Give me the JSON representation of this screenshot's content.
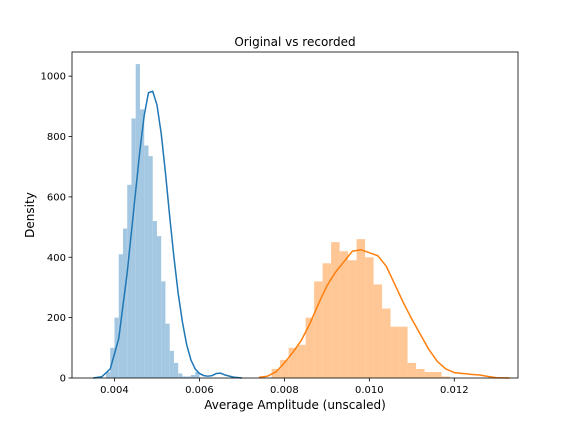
{
  "chart_data": {
    "type": "bar",
    "title": "Original vs recorded",
    "xlabel": "Average Amplitude (unscaled)",
    "ylabel": "Density",
    "xlim": [
      0.003,
      0.0135
    ],
    "ylim": [
      0,
      1080
    ],
    "x_ticks": [
      {
        "value": 0.004,
        "label": "0.004"
      },
      {
        "value": 0.006,
        "label": "0.006"
      },
      {
        "value": 0.008,
        "label": "0.008"
      },
      {
        "value": 0.01,
        "label": "0.010"
      },
      {
        "value": 0.012,
        "label": "0.012"
      }
    ],
    "y_ticks": [
      {
        "value": 0,
        "label": "0"
      },
      {
        "value": 200,
        "label": "200"
      },
      {
        "value": 400,
        "label": "400"
      },
      {
        "value": 600,
        "label": "600"
      },
      {
        "value": 800,
        "label": "800"
      },
      {
        "value": 1000,
        "label": "1000"
      }
    ],
    "grid": false,
    "series": [
      {
        "color": "#1f77b4",
        "bar_color": "#a4c8e2",
        "bin_width": 0.0001,
        "bin_edges_start": 0.0038,
        "hist": [
          20,
          100,
          200,
          410,
          495,
          640,
          860,
          1040,
          890,
          770,
          735,
          520,
          470,
          320,
          180,
          90,
          50,
          15,
          5,
          5,
          10,
          20
        ],
        "kde": [
          [
            0.0035,
            0
          ],
          [
            0.0037,
            4
          ],
          [
            0.0039,
            30
          ],
          [
            0.0041,
            130
          ],
          [
            0.0043,
            350
          ],
          [
            0.0045,
            620
          ],
          [
            0.0046,
            755
          ],
          [
            0.0047,
            870
          ],
          [
            0.0048,
            945
          ],
          [
            0.0049,
            950
          ],
          [
            0.005,
            905
          ],
          [
            0.0051,
            810
          ],
          [
            0.0052,
            680
          ],
          [
            0.0053,
            535
          ],
          [
            0.0054,
            400
          ],
          [
            0.0055,
            280
          ],
          [
            0.0056,
            185
          ],
          [
            0.0057,
            110
          ],
          [
            0.0058,
            60
          ],
          [
            0.0059,
            30
          ],
          [
            0.006,
            15
          ],
          [
            0.0061,
            8
          ],
          [
            0.0062,
            6
          ],
          [
            0.0063,
            8
          ],
          [
            0.0064,
            15
          ],
          [
            0.0065,
            16
          ],
          [
            0.0066,
            10
          ],
          [
            0.0068,
            3
          ],
          [
            0.007,
            0
          ]
        ]
      },
      {
        "color": "#ff7f0e",
        "bar_color": "#ffc796",
        "bin_width": 0.0002,
        "bin_edges_start": 0.0077,
        "hist": [
          30,
          60,
          100,
          110,
          200,
          320,
          380,
          450,
          420,
          390,
          460,
          400,
          310,
          230,
          170,
          170,
          50,
          30,
          20,
          20,
          5
        ],
        "kde": [
          [
            0.0074,
            2
          ],
          [
            0.0076,
            6
          ],
          [
            0.0078,
            20
          ],
          [
            0.008,
            50
          ],
          [
            0.0082,
            85
          ],
          [
            0.0084,
            125
          ],
          [
            0.0086,
            180
          ],
          [
            0.0088,
            245
          ],
          [
            0.009,
            305
          ],
          [
            0.0092,
            350
          ],
          [
            0.0094,
            385
          ],
          [
            0.0096,
            420
          ],
          [
            0.0098,
            425
          ],
          [
            0.01,
            415
          ],
          [
            0.0102,
            405
          ],
          [
            0.0104,
            370
          ],
          [
            0.0106,
            310
          ],
          [
            0.0108,
            250
          ],
          [
            0.011,
            195
          ],
          [
            0.0112,
            145
          ],
          [
            0.0114,
            95
          ],
          [
            0.0116,
            55
          ],
          [
            0.0118,
            30
          ],
          [
            0.012,
            18
          ],
          [
            0.0122,
            15
          ],
          [
            0.0124,
            12
          ],
          [
            0.0126,
            10
          ],
          [
            0.0128,
            5
          ],
          [
            0.013,
            1
          ],
          [
            0.0133,
            0
          ]
        ]
      }
    ]
  }
}
